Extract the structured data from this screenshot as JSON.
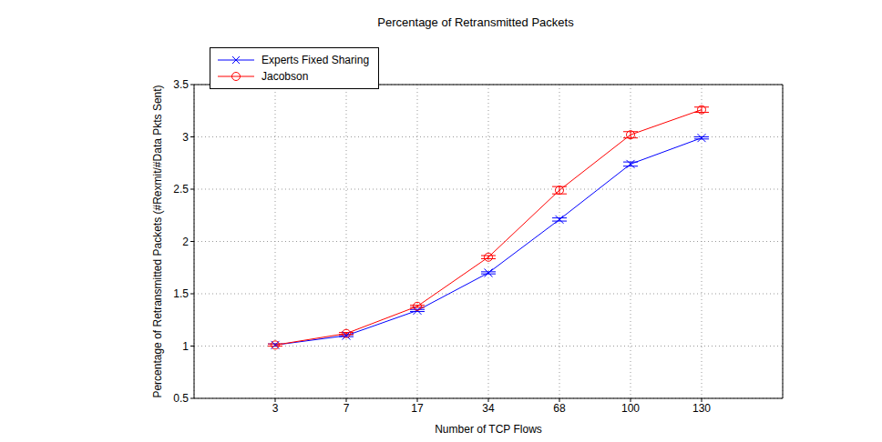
{
  "chart_data": {
    "type": "line",
    "title": "Percentage of Retransmitted Packets",
    "x_label": "Number of TCP Flows",
    "y_label": "Percentage of Retransmitted Packets (#Rexmit/#Data Pkts Sent)",
    "categories": [
      3,
      7,
      17,
      34,
      68,
      100,
      130
    ],
    "series": [
      {
        "name": "Experts Fixed Sharing",
        "color": "#0000ff",
        "marker": "x",
        "values": [
          1.01,
          1.1,
          1.34,
          1.7,
          2.21,
          2.74,
          2.99
        ],
        "errors": [
          0.01,
          0.01,
          0.01,
          0.01,
          0.015,
          0.02,
          0.01
        ]
      },
      {
        "name": "Jacobson",
        "color": "#ff0000",
        "marker": "circle",
        "values": [
          1.01,
          1.12,
          1.38,
          1.85,
          2.49,
          3.02,
          3.26
        ],
        "errors": [
          0.01,
          0.01,
          0.01,
          0.015,
          0.035,
          0.03,
          0.025
        ]
      }
    ],
    "ylim": [
      0.5,
      3.5
    ],
    "yticks": [
      0.5,
      1,
      1.5,
      2,
      2.5,
      3,
      3.5
    ],
    "grid": true,
    "legend": "upper left"
  }
}
